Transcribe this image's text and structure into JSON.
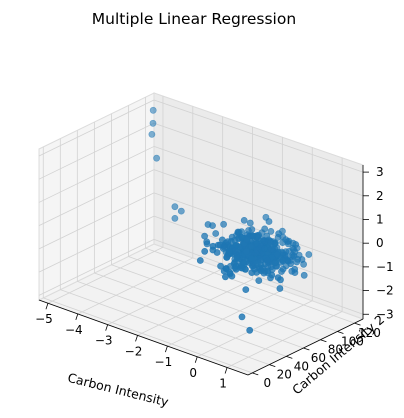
{
  "chart_data": {
    "type": "scatter",
    "projection": "3d",
    "title": "Multiple Linear Regression",
    "xlabel": "Carbon Intensity",
    "ylabel": "Carbon Intensity 2",
    "zlabel": "",
    "xlim": [
      -5.3,
      1.7
    ],
    "ylim": [
      -5,
      130
    ],
    "zlim": [
      -3.2,
      3.3
    ],
    "x_ticks": [
      -5,
      -4,
      -3,
      -2,
      -1,
      0,
      1
    ],
    "y_ticks": [
      0,
      20,
      40,
      60,
      80,
      100,
      120
    ],
    "z_ticks": [
      -3,
      -2,
      -1,
      0,
      1,
      2,
      3
    ],
    "grid": true,
    "marker_color": "#1f77b4",
    "cluster_center": {
      "x": 0.3,
      "y": 55,
      "z": 0.3
    },
    "outlier_points": [
      {
        "x": -4.9,
        "y": 115,
        "z": 3.0
      },
      {
        "x": -4.85,
        "y": 113,
        "z": 2.5
      },
      {
        "x": -4.8,
        "y": 110,
        "z": 2.1
      },
      {
        "x": -4.5,
        "y": 105,
        "z": 1.3
      },
      {
        "x": -3.6,
        "y": 95,
        "z": -0.2
      },
      {
        "x": -3.3,
        "y": 92,
        "z": -0.2
      },
      {
        "x": -3.6,
        "y": 95,
        "z": -0.7
      },
      {
        "x": -1.2,
        "y": 68,
        "z": 0.6
      },
      {
        "x": -0.8,
        "y": 62,
        "z": -0.9
      },
      {
        "x": 0.5,
        "y": 30,
        "z": -1.9
      },
      {
        "x": 0.9,
        "y": 25,
        "z": -2.2
      }
    ]
  }
}
